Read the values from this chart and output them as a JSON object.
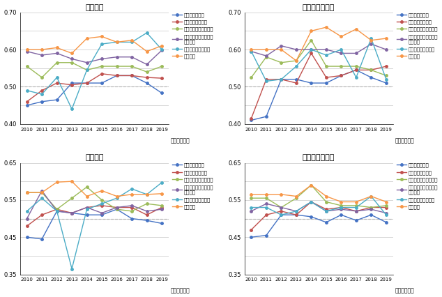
{
  "years": [
    2010,
    2011,
    2012,
    2013,
    2014,
    2015,
    2016,
    2017,
    2018,
    2019
  ],
  "series_names": [
    "景気の先行き感",
    "家計収入の見通し",
    "地価／住宅の価格相場",
    "住宅取得時の税制等の行政施策",
    "従前住宅の売却価格",
    "金利動向"
  ],
  "colors": [
    "#4472c4",
    "#c0504d",
    "#9bbb59",
    "#8064a2",
    "#4bacc6",
    "#f79646"
  ],
  "charts": {
    "新築戸建": {
      "景気の先行き感": [
        0.45,
        0.46,
        0.465,
        0.51,
        0.51,
        0.51,
        0.53,
        0.53,
        0.51,
        0.483
      ],
      "家計収入の見通し": [
        0.46,
        0.49,
        0.51,
        0.505,
        0.51,
        0.535,
        0.53,
        0.53,
        0.525,
        0.523
      ],
      "地価／住宅の価格相場": [
        0.555,
        0.525,
        0.565,
        0.565,
        0.545,
        0.555,
        0.555,
        0.555,
        0.54,
        0.555
      ],
      "住宅取得時の税制等の行政施策": [
        0.595,
        0.585,
        0.59,
        0.575,
        0.565,
        0.575,
        0.58,
        0.58,
        0.56,
        0.598
      ],
      "従前住宅の売却価格": [
        0.49,
        0.48,
        0.525,
        0.44,
        0.545,
        0.615,
        0.62,
        0.62,
        0.645,
        0.6
      ],
      "金利動向": [
        0.6,
        0.6,
        0.605,
        0.59,
        0.63,
        0.635,
        0.62,
        0.625,
        0.595,
        0.61
      ]
    },
    "新築マンション": {
      "景気の先行き感": [
        0.41,
        0.42,
        0.52,
        0.52,
        0.51,
        0.51,
        0.53,
        0.545,
        0.525,
        0.51
      ],
      "家計収入の見通し": [
        0.415,
        0.52,
        0.52,
        0.51,
        0.59,
        0.525,
        0.53,
        0.545,
        0.545,
        0.555
      ],
      "地価／住宅の価格相場": [
        0.525,
        0.58,
        0.565,
        0.57,
        0.625,
        0.555,
        0.555,
        0.555,
        0.545,
        0.53
      ],
      "住宅取得時の税制等の行政施策": [
        0.595,
        0.583,
        0.61,
        0.6,
        0.6,
        0.6,
        0.59,
        0.59,
        0.615,
        0.6
      ],
      "従前住宅の売却価格": [
        0.595,
        0.515,
        0.52,
        0.555,
        0.6,
        0.585,
        0.6,
        0.525,
        0.63,
        0.52
      ],
      "金利動向": [
        0.6,
        0.6,
        0.6,
        0.57,
        0.65,
        0.66,
        0.635,
        0.655,
        0.625,
        0.63
      ]
    },
    "中古戸建": {
      "景気の先行き感": [
        0.45,
        0.445,
        0.52,
        0.515,
        0.51,
        0.51,
        0.525,
        0.5,
        0.495,
        0.487
      ],
      "家計収入の見通し": [
        0.48,
        0.51,
        0.525,
        0.515,
        0.53,
        0.535,
        0.53,
        0.53,
        0.51,
        0.53
      ],
      "地価／住宅の価格相場": [
        0.57,
        0.57,
        0.525,
        0.555,
        0.585,
        0.55,
        0.525,
        0.52,
        0.54,
        0.535
      ],
      "住宅取得時の税制等の行政施策": [
        0.5,
        0.575,
        0.52,
        0.515,
        0.53,
        0.515,
        0.53,
        0.535,
        0.52,
        0.525
      ],
      "従前住宅の売却価格": [
        0.52,
        0.555,
        0.52,
        0.365,
        0.525,
        0.54,
        0.555,
        0.58,
        0.565,
        0.597
      ],
      "金利動向": [
        0.57,
        0.57,
        0.598,
        0.6,
        0.56,
        0.575,
        0.56,
        0.565,
        0.565,
        0.567
      ]
    },
    "中古マンション": {
      "景気の先行き感": [
        0.45,
        0.455,
        0.51,
        0.51,
        0.505,
        0.49,
        0.51,
        0.495,
        0.51,
        0.49
      ],
      "家計収入の見通し": [
        0.47,
        0.51,
        0.52,
        0.51,
        0.545,
        0.525,
        0.53,
        0.52,
        0.53,
        0.53
      ],
      "地価／住宅の価格相場": [
        0.555,
        0.555,
        0.53,
        0.555,
        0.59,
        0.545,
        0.535,
        0.535,
        0.53,
        0.535
      ],
      "住宅取得時の税制等の行政施策": [
        0.52,
        0.54,
        0.53,
        0.52,
        0.545,
        0.52,
        0.525,
        0.52,
        0.525,
        0.515
      ],
      "従前住宅の売却価格": [
        0.53,
        0.53,
        0.51,
        0.52,
        0.545,
        0.52,
        0.53,
        0.53,
        0.56,
        0.51
      ],
      "金利動向": [
        0.565,
        0.565,
        0.565,
        0.56,
        0.59,
        0.56,
        0.545,
        0.545,
        0.56,
        0.545
      ]
    }
  },
  "chart_ylims": {
    "新築戸建": [
      0.4,
      0.7
    ],
    "新築マンション": [
      0.4,
      0.7
    ],
    "中古戸建": [
      0.35,
      0.65
    ],
    "中古マンション": [
      0.35,
      0.65
    ]
  },
  "chart_yticks": {
    "新築戸建": [
      0.4,
      0.45,
      0.5,
      0.55,
      0.6,
      0.65,
      0.7
    ],
    "新築マンション": [
      0.4,
      0.45,
      0.5,
      0.55,
      0.6,
      0.65,
      0.7
    ],
    "中古戸建": [
      0.35,
      0.4,
      0.45,
      0.5,
      0.55,
      0.6,
      0.65
    ],
    "中古マンション": [
      0.35,
      0.4,
      0.45,
      0.5,
      0.55,
      0.6,
      0.65
    ]
  },
  "chart_ytick_labels": {
    "新築戸建": [
      "0.40",
      "",
      "0.50",
      "",
      "0.60",
      "",
      "0.70"
    ],
    "新築マンション": [
      "0.40",
      "",
      "0.50",
      "",
      "0.60",
      "",
      "0.70"
    ],
    "中古戸建": [
      "0.35",
      "",
      "0.45",
      "",
      "0.55",
      "",
      "0.65"
    ],
    "中古マンション": [
      "0.35",
      "",
      "0.45",
      "",
      "0.55",
      "",
      "0.65"
    ]
  },
  "dashed_line_y": 0.5,
  "xlabel": "（取得年度）",
  "background_color": "#ffffff",
  "grid_color": "#c8c8c8",
  "legend_labels": [
    "景気の先行き感",
    "家計収入の見通し",
    "地価／住宅の価格相場",
    "住宅取得時の税制等の\n行政施策",
    "従前住宅の売却価格",
    "金利動向"
  ]
}
